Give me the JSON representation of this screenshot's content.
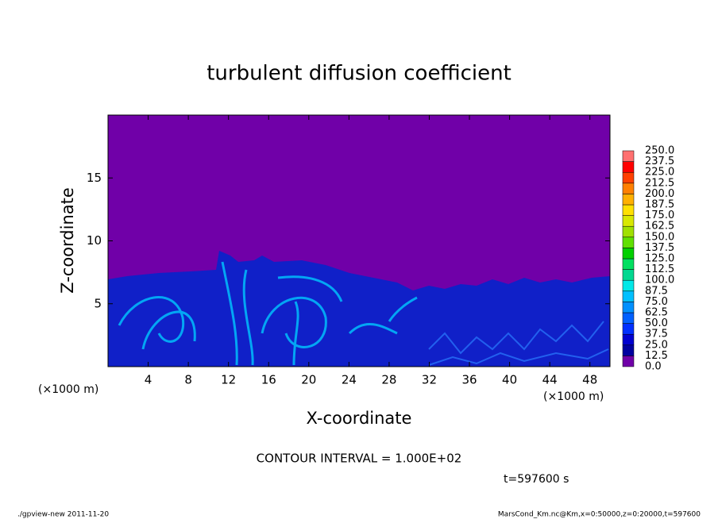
{
  "chart_data": {
    "type": "heatmap",
    "title": "turbulent diffusion coefficient",
    "x_label": "X-coordinate",
    "y_label": "Z-coordinate",
    "x_unit": "(×1000 m)",
    "xlim": [
      0,
      50
    ],
    "xticks": [
      4,
      8,
      12,
      16,
      20,
      24,
      28,
      32,
      36,
      40,
      44,
      48
    ],
    "ylim": [
      0,
      20
    ],
    "yticks": [
      5,
      10,
      15
    ],
    "colorbar": {
      "levels": [
        {
          "value": 0,
          "label": "0.0"
        },
        {
          "value": 12.5,
          "label": "12.5"
        },
        {
          "value": 25,
          "label": "25.0"
        },
        {
          "value": 37.5,
          "label": "37.5"
        },
        {
          "value": 50,
          "label": "50.0"
        },
        {
          "value": 62.5,
          "label": "62.5"
        },
        {
          "value": 75,
          "label": "75.0"
        },
        {
          "value": 87.5,
          "label": "87.5"
        },
        {
          "value": 100,
          "label": "100.0"
        },
        {
          "value": 112.5,
          "label": "112.5"
        },
        {
          "value": 125,
          "label": "125.0"
        },
        {
          "value": 137.5,
          "label": "137.5"
        },
        {
          "value": 150,
          "label": "150.0"
        },
        {
          "value": 162.5,
          "label": "162.5"
        },
        {
          "value": 175,
          "label": "175.0"
        },
        {
          "value": 187.5,
          "label": "187.5"
        },
        {
          "value": 200,
          "label": "200.0"
        },
        {
          "value": 212.5,
          "label": "212.5"
        },
        {
          "value": 225,
          "label": "225.0"
        },
        {
          "value": 237.5,
          "label": "237.5"
        },
        {
          "value": 250,
          "label": "250.0"
        }
      ],
      "colors": [
        "#7000a8",
        "#0000a0",
        "#0000d0",
        "#0030ff",
        "#0060ff",
        "#0090ff",
        "#00c0ff",
        "#00e8e8",
        "#00d890",
        "#00e060",
        "#00d000",
        "#60e000",
        "#a0e000",
        "#d8e800",
        "#ffe000",
        "#ffb000",
        "#ff8000",
        "#ff4000",
        "#ff0000",
        "#ff7070"
      ]
    },
    "contour_interval": "CONTOUR INTERVAL = 1.000E+02",
    "time": "t=597600 s",
    "footer_left": "./gpview-new   2011-11-20",
    "footer_right": "MarsCond_Km.nc@Km,x=0:50000,z=0:20000,t=597600"
  }
}
